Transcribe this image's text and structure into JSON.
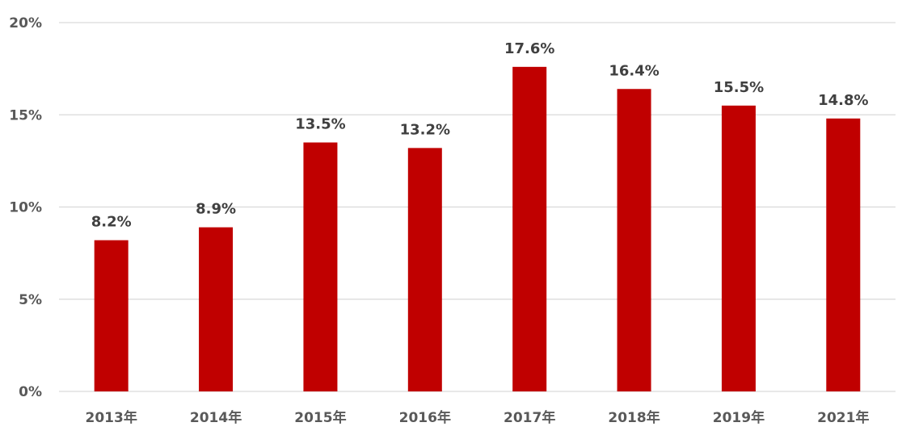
{
  "chart_data": {
    "type": "bar",
    "categories": [
      "2013年",
      "2014年",
      "2015年",
      "2016年",
      "2017年",
      "2018年",
      "2019年",
      "2021年"
    ],
    "values": [
      8.2,
      8.9,
      13.5,
      13.2,
      17.6,
      16.4,
      15.5,
      14.8
    ],
    "data_labels": [
      "8.2%",
      "8.9%",
      "13.5%",
      "13.2%",
      "17.6%",
      "16.4%",
      "15.5%",
      "14.8%"
    ],
    "y_ticks": [
      0,
      5,
      10,
      15,
      20
    ],
    "y_tick_labels": [
      "0%",
      "5%",
      "10%",
      "15%",
      "20%"
    ],
    "ylim": [
      0,
      20
    ],
    "grid": true,
    "legend": "none",
    "bar_color": "#C00000",
    "grid_color": "#D9D9D9"
  }
}
